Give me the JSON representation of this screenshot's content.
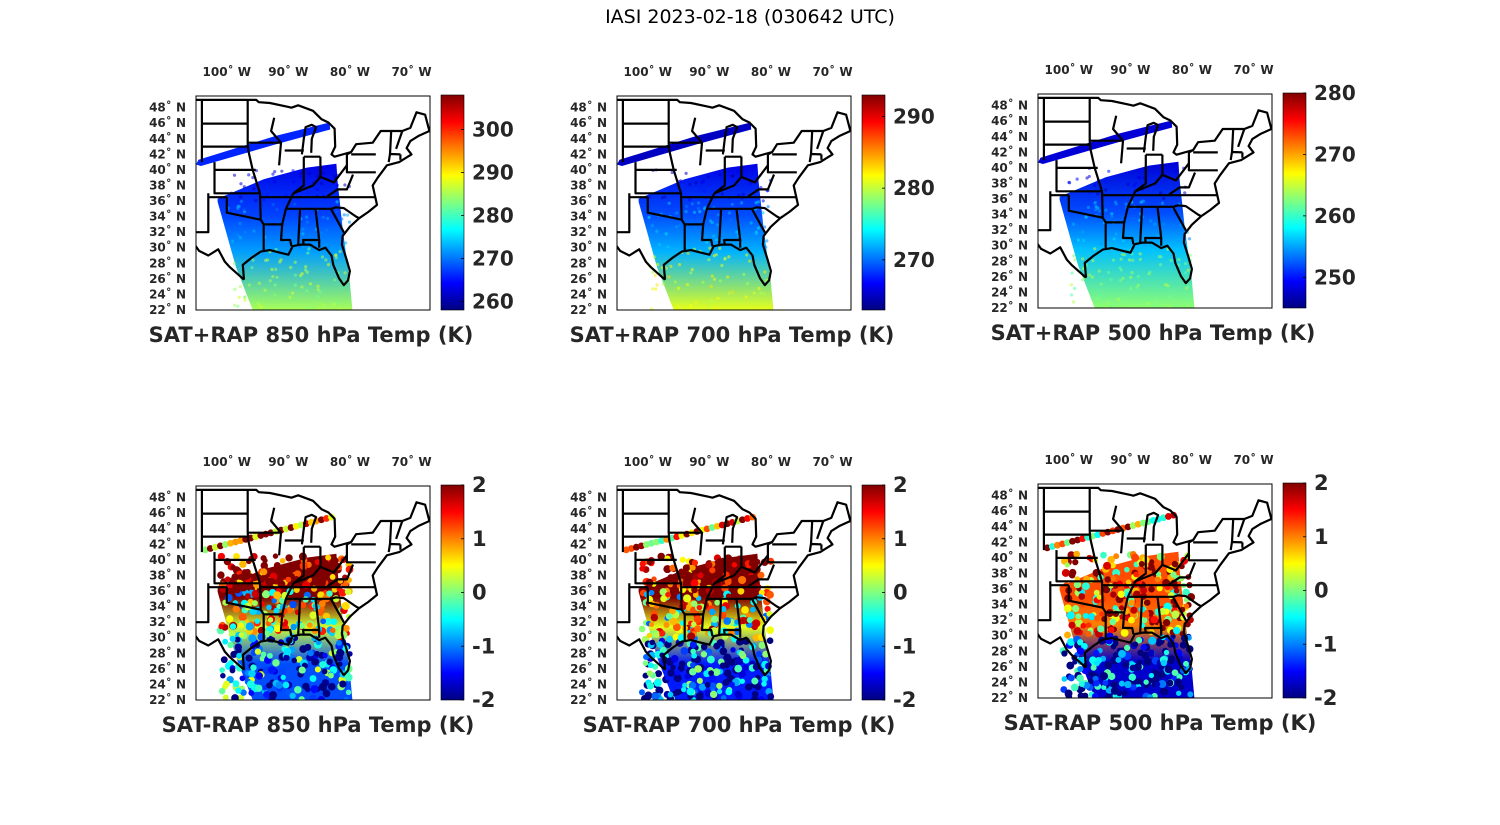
{
  "figure_title": "IASI 2023-02-18 (030642 UTC)",
  "colormap": "jet",
  "colors": {
    "border": "#000000",
    "text": "#262626",
    "background": "#ffffff"
  },
  "chart_data": [
    {
      "type": "heatmap",
      "title": "SAT+RAP 850 hPa Temp (K)",
      "map_region": "Central/Eastern United States and Gulf of Mexico",
      "lon_ticks": [
        "100° W",
        "90° W",
        "80° W",
        "70° W"
      ],
      "lon_values": [
        -100,
        -90,
        -80,
        -70
      ],
      "lat_ticks": [
        "48° N",
        "46° N",
        "44° N",
        "42° N",
        "40° N",
        "38° N",
        "36° N",
        "34° N",
        "32° N",
        "30° N",
        "28° N",
        "26° N",
        "24° N",
        "22° N"
      ],
      "lat_values": [
        48,
        46,
        44,
        42,
        40,
        38,
        36,
        34,
        32,
        30,
        28,
        26,
        24,
        22
      ],
      "colorbar": {
        "ticks": [
          260,
          270,
          280,
          290,
          300
        ],
        "labels": [
          "260",
          "270",
          "280",
          "290",
          "300"
        ],
        "range": [
          258,
          308
        ]
      },
      "swath_values": {
        "north_strip": 266,
        "central_band_north": 263,
        "central_band_south": 272,
        "gulf": 285
      }
    },
    {
      "type": "heatmap",
      "title": "SAT+RAP 700 hPa Temp (K)",
      "map_region": "Central/Eastern United States and Gulf of Mexico",
      "lon_ticks": [
        "100° W",
        "90° W",
        "80° W",
        "70° W"
      ],
      "lon_values": [
        -100,
        -90,
        -80,
        -70
      ],
      "lat_ticks": [
        "48° N",
        "46° N",
        "44° N",
        "42° N",
        "40° N",
        "38° N",
        "36° N",
        "34° N",
        "32° N",
        "30° N",
        "28° N",
        "26° N",
        "24° N",
        "22° N"
      ],
      "lat_values": [
        48,
        46,
        44,
        42,
        40,
        38,
        36,
        34,
        32,
        30,
        28,
        26,
        24,
        22
      ],
      "colorbar": {
        "ticks": [
          270,
          280,
          290
        ],
        "labels": [
          "270",
          "280",
          "290"
        ],
        "range": [
          263,
          293
        ]
      },
      "swath_values": {
        "north_strip": 265,
        "central_band_north": 266,
        "central_band_south": 272,
        "gulf": 281
      }
    },
    {
      "type": "heatmap",
      "title": "SAT+RAP 500 hPa Temp (K)",
      "map_region": "Central/Eastern United States and Gulf of Mexico",
      "lon_ticks": [
        "100° W",
        "90° W",
        "80° W",
        "70° W"
      ],
      "lon_values": [
        -100,
        -90,
        -80,
        -70
      ],
      "lat_ticks": [
        "48° N",
        "46° N",
        "44° N",
        "42° N",
        "40° N",
        "38° N",
        "36° N",
        "34° N",
        "32° N",
        "30° N",
        "28° N",
        "26° N",
        "24° N",
        "22° N"
      ],
      "lat_values": [
        48,
        46,
        44,
        42,
        40,
        38,
        36,
        34,
        32,
        30,
        28,
        26,
        24,
        22
      ],
      "colorbar": {
        "ticks": [
          250,
          260,
          270,
          280
        ],
        "labels": [
          "250",
          "260",
          "270",
          "280"
        ],
        "range": [
          245,
          280
        ]
      },
      "swath_values": {
        "north_strip": 248,
        "central_band_north": 248,
        "central_band_south": 256,
        "gulf": 263
      }
    },
    {
      "type": "heatmap",
      "title": "SAT-RAP 850 hPa Temp (K)",
      "map_region": "Central/Eastern United States and Gulf of Mexico",
      "lon_ticks": [
        "100° W",
        "90° W",
        "80° W",
        "70° W"
      ],
      "lon_values": [
        -100,
        -90,
        -80,
        -70
      ],
      "lat_ticks": [
        "48° N",
        "46° N",
        "44° N",
        "42° N",
        "40° N",
        "38° N",
        "36° N",
        "34° N",
        "32° N",
        "30° N",
        "28° N",
        "26° N",
        "24° N",
        "22° N"
      ],
      "lat_values": [
        48,
        46,
        44,
        42,
        40,
        38,
        36,
        34,
        32,
        30,
        28,
        26,
        24,
        22
      ],
      "colorbar": {
        "ticks": [
          -2,
          -1,
          0,
          1,
          2
        ],
        "labels": [
          "-2",
          "-1",
          "0",
          "1",
          "2"
        ],
        "range": [
          -2,
          2
        ]
      },
      "swath_values": {
        "north_strip": 1.5,
        "central_band_north": 2.0,
        "central_band_south": 0.3,
        "gulf": -1.2
      }
    },
    {
      "type": "heatmap",
      "title": "SAT-RAP 700 hPa Temp (K)",
      "map_region": "Central/Eastern United States and Gulf of Mexico",
      "lon_ticks": [
        "100° W",
        "90° W",
        "80° W",
        "70° W"
      ],
      "lon_values": [
        -100,
        -90,
        -80,
        -70
      ],
      "lat_ticks": [
        "48° N",
        "46° N",
        "44° N",
        "42° N",
        "40° N",
        "38° N",
        "36° N",
        "34° N",
        "32° N",
        "30° N",
        "28° N",
        "26° N",
        "24° N",
        "22° N"
      ],
      "lat_values": [
        48,
        46,
        44,
        42,
        40,
        38,
        36,
        34,
        32,
        30,
        28,
        26,
        24,
        22
      ],
      "colorbar": {
        "ticks": [
          -2,
          -1,
          0,
          1,
          2
        ],
        "labels": [
          "-2",
          "-1",
          "0",
          "1",
          "2"
        ],
        "range": [
          -2,
          2
        ]
      },
      "swath_values": {
        "north_strip": 1.2,
        "central_band_north": 2.0,
        "central_band_south": 0.4,
        "gulf": -1.4
      }
    },
    {
      "type": "heatmap",
      "title": "SAT-RAP 500 hPa Temp (K)",
      "map_region": "Central/Eastern United States and Gulf of Mexico",
      "lon_ticks": [
        "100° W",
        "90° W",
        "80° W",
        "70° W"
      ],
      "lon_values": [
        -100,
        -90,
        -80,
        -70
      ],
      "lat_ticks": [
        "48° N",
        "46° N",
        "44° N",
        "42° N",
        "40° N",
        "38° N",
        "36° N",
        "34° N",
        "32° N",
        "30° N",
        "28° N",
        "26° N",
        "24° N",
        "22° N"
      ],
      "lat_values": [
        48,
        46,
        44,
        42,
        40,
        38,
        36,
        34,
        32,
        30,
        28,
        26,
        24,
        22
      ],
      "colorbar": {
        "ticks": [
          -2,
          -1,
          0,
          1,
          2
        ],
        "labels": [
          "-2",
          "-1",
          "0",
          "1",
          "2"
        ],
        "range": [
          -2,
          2
        ]
      },
      "swath_values": {
        "north_strip": 0.8,
        "central_band_north": 1.2,
        "central_band_south": 1.0,
        "gulf": -1.7
      }
    }
  ]
}
